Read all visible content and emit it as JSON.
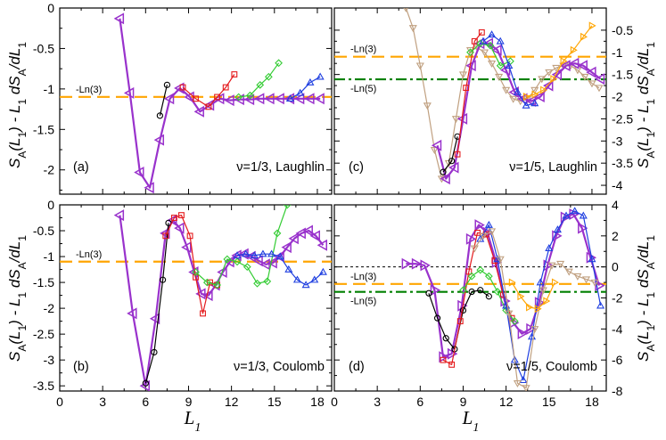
{
  "colors": {
    "purple": "#9932CC",
    "orange": "#FFA500",
    "green_ref": "#008000",
    "black": "#000000",
    "red": "#E41A1C",
    "green": "#33CC33",
    "blue": "#1F3FE0",
    "brown": "#C0A080"
  },
  "chart_data": [
    {
      "id": "a",
      "type": "line",
      "panel_label": "(a)",
      "annotation": "ν=1/3, Laughlin",
      "xlabel": "",
      "ylabel": "S_A(L_1) - L_1 dS_A/dL_1",
      "ylabel_side": "left",
      "xlim": [
        0,
        19
      ],
      "ylim": [
        -2.3,
        0
      ],
      "xticks": [
        0,
        3,
        6,
        9,
        12,
        15,
        18
      ],
      "xtick_labels": [
        "",
        "",
        "",
        "",
        "",
        "",
        ""
      ],
      "yticks": [
        0,
        -0.5,
        -1,
        -1.5,
        -2
      ],
      "ytick_labels": [
        "0",
        "-0.5",
        "-1",
        "-1.5",
        "-2"
      ],
      "ref_lines": [
        {
          "label": "-Ln(3)",
          "y": -1.0986,
          "color": "orange",
          "style": "dash"
        }
      ],
      "series": [
        {
          "name": "purple",
          "color": "purple",
          "marker": "tri-left",
          "width": 2.2,
          "x": [
            4.2,
            4.9,
            5.6,
            6.3,
            7.0,
            7.7,
            8.4,
            9.1,
            9.8,
            10.5,
            11.2,
            11.9,
            12.6,
            13.3,
            14.0,
            14.7,
            15.4,
            16.1,
            16.8,
            17.5,
            18.2
          ],
          "y": [
            -0.13,
            -1.05,
            -2.03,
            -2.22,
            -1.63,
            -1.12,
            -0.99,
            -1.1,
            -1.28,
            -1.2,
            -1.12,
            -1.14,
            -1.13,
            -1.13,
            -1.12,
            -1.12,
            -1.12,
            -1.12,
            -1.12,
            -1.12,
            -1.12
          ]
        },
        {
          "name": "black",
          "color": "black",
          "marker": "circle",
          "width": 1.2,
          "x": [
            7.0,
            7.5
          ],
          "y": [
            -1.33,
            -0.95
          ]
        },
        {
          "name": "red",
          "color": "red",
          "marker": "square",
          "width": 1.2,
          "x": [
            8.6,
            9.5,
            10.4,
            11.0,
            11.6,
            12.2
          ],
          "y": [
            -0.98,
            -1.12,
            -1.22,
            -1.1,
            -0.98,
            -0.82
          ]
        },
        {
          "name": "green",
          "color": "green",
          "marker": "diamond",
          "width": 1.2,
          "x": [
            12.5,
            13.3,
            14.0,
            14.6,
            15.3
          ],
          "y": [
            -1.1,
            -1.08,
            -0.95,
            -0.85,
            -0.68
          ]
        },
        {
          "name": "blue",
          "color": "blue",
          "marker": "tri-up",
          "width": 1.2,
          "x": [
            16.1,
            16.8,
            17.5,
            18.2
          ],
          "y": [
            -1.12,
            -1.05,
            -0.92,
            -0.85
          ]
        }
      ]
    },
    {
      "id": "b",
      "type": "line",
      "panel_label": "(b)",
      "annotation": "ν=1/3, Coulomb",
      "xlabel": "L_1",
      "ylabel": "S_A(L_1) - L_1 dS_A/dL_1",
      "ylabel_side": "left",
      "xlim": [
        0,
        19
      ],
      "ylim": [
        -3.6,
        0
      ],
      "xticks": [
        0,
        3,
        6,
        9,
        12,
        15,
        18
      ],
      "xtick_labels": [
        "0",
        "3",
        "6",
        "9",
        "12",
        "15",
        "18"
      ],
      "yticks": [
        0,
        -0.5,
        -1,
        -1.5,
        -2,
        -2.5,
        -3,
        -3.5
      ],
      "ytick_labels": [
        "0",
        "-0.5",
        "-1",
        "-1.5",
        "-2",
        "-2.5",
        "-3",
        "-3.5"
      ],
      "ref_lines": [
        {
          "label": "-Ln(3)",
          "y": -1.0986,
          "color": "orange",
          "style": "dash"
        }
      ],
      "series": [
        {
          "name": "purple",
          "color": "purple",
          "marker": "tri-left",
          "width": 2.2,
          "x": [
            4.2,
            5.1,
            6.0,
            6.7,
            7.4,
            7.9,
            8.4,
            8.9,
            9.4,
            9.9,
            10.4,
            10.9,
            11.4,
            11.9,
            12.4,
            12.9,
            13.4,
            13.9,
            14.4,
            14.9,
            15.4,
            15.9,
            16.4,
            16.9,
            17.4,
            17.9,
            18.4
          ],
          "y": [
            -0.2,
            -2.1,
            -3.5,
            -2.2,
            -0.55,
            -0.3,
            -0.45,
            -0.82,
            -1.3,
            -1.72,
            -1.75,
            -1.55,
            -1.3,
            -1.1,
            -0.98,
            -0.95,
            -1.0,
            -1.08,
            -1.15,
            -1.12,
            -1.0,
            -0.82,
            -0.65,
            -0.55,
            -0.5,
            -0.6,
            -0.78
          ]
        },
        {
          "name": "black",
          "color": "black",
          "marker": "circle",
          "width": 1.2,
          "x": [
            6.0,
            6.6,
            7.2,
            7.6
          ],
          "y": [
            -3.45,
            -2.85,
            -1.45,
            -0.35
          ]
        },
        {
          "name": "red",
          "color": "red",
          "marker": "square",
          "width": 1.2,
          "x": [
            7.4,
            8.0,
            8.5,
            9.1,
            9.5,
            10.0,
            10.5,
            11.0
          ],
          "y": [
            -0.6,
            -0.25,
            -0.2,
            -0.6,
            -1.4,
            -2.1,
            -1.5,
            -1.55
          ]
        },
        {
          "name": "green",
          "color": "green",
          "marker": "diamond",
          "width": 1.2,
          "x": [
            9.5,
            10.3,
            11.0,
            11.7,
            12.4,
            13.1,
            13.8,
            14.5,
            15.2,
            15.9
          ],
          "y": [
            -1.3,
            -1.5,
            -1.55,
            -1.05,
            -1.1,
            -1.2,
            -1.52,
            -1.48,
            -0.55,
            0.0
          ]
        },
        {
          "name": "blue",
          "color": "blue",
          "marker": "tri-up",
          "width": 1.2,
          "x": [
            12.4,
            13.0,
            13.6,
            14.2,
            14.8,
            15.4,
            16.0,
            16.6,
            17.2,
            17.8,
            18.4
          ],
          "y": [
            -0.98,
            -0.95,
            -0.98,
            -0.95,
            -0.95,
            -1.0,
            -1.25,
            -1.45,
            -1.55,
            -1.45,
            -1.3
          ]
        }
      ]
    },
    {
      "id": "c",
      "type": "line",
      "panel_label": "(c)",
      "annotation": "ν=1/5, Laughlin",
      "xlabel": "",
      "ylabel": "S_A(L_1) - L_1 dS_A/dL_1",
      "ylabel_side": "right",
      "xlim": [
        0,
        19
      ],
      "ylim": [
        -4.2,
        0
      ],
      "xticks": [
        0,
        3,
        6,
        9,
        12,
        15,
        18
      ],
      "xtick_labels": [
        "",
        "",
        "",
        "",
        "",
        "",
        ""
      ],
      "yticks": [
        -0.5,
        -1,
        -1.5,
        -2,
        -2.5,
        -3,
        -3.5,
        -4
      ],
      "ytick_labels": [
        "-0.5",
        "-1",
        "-1.5",
        "-2",
        "-2.5",
        "-3",
        "-3.5",
        "-4"
      ],
      "ref_lines": [
        {
          "label": "-Ln(3)",
          "y": -1.0986,
          "color": "orange",
          "style": "dash"
        },
        {
          "label": "-Ln(5)",
          "y": -1.6094,
          "color": "green_ref",
          "style": "dashdot"
        }
      ],
      "series": [
        {
          "name": "brown",
          "color": "brown",
          "marker": "tri-down",
          "width": 1.2,
          "x": [
            5.0,
            5.5,
            6.0,
            6.5,
            7.0,
            7.5,
            8.0,
            8.5,
            9.0,
            9.5,
            10.0,
            10.5,
            11.0,
            11.5,
            12.0,
            12.5,
            13.0,
            13.5,
            14.0,
            14.5,
            15.0,
            15.5,
            16.0,
            16.5,
            17.0,
            17.5,
            18.0,
            18.5
          ],
          "y": [
            0.0,
            -0.45,
            -1.3,
            -2.2,
            -3.2,
            -3.85,
            -3.5,
            -2.5,
            -1.5,
            -0.95,
            -0.9,
            -1.0,
            -1.25,
            -1.55,
            -1.85,
            -2.05,
            -2.1,
            -2.05,
            -1.85,
            -1.6,
            -1.45,
            -1.35,
            -1.3,
            -1.3,
            -1.4,
            -1.55,
            -1.7,
            -1.8
          ]
        },
        {
          "name": "purple",
          "color": "purple",
          "marker": "tri-left",
          "width": 2.2,
          "x": [
            7.2,
            7.8,
            8.4,
            9.0,
            9.6,
            10.2,
            10.8,
            11.4,
            12.0,
            12.6,
            13.2,
            13.8,
            14.4,
            15.0,
            15.6,
            16.2,
            16.8,
            17.4,
            18.0,
            18.6
          ],
          "y": [
            -3.1,
            -3.85,
            -3.6,
            -2.5,
            -1.3,
            -0.8,
            -0.8,
            -0.95,
            -1.4,
            -1.9,
            -2.05,
            -2.1,
            -2.0,
            -1.75,
            -1.5,
            -1.3,
            -1.25,
            -1.3,
            -1.45,
            -1.6
          ]
        },
        {
          "name": "black",
          "color": "black",
          "marker": "circle",
          "width": 1.2,
          "x": [
            7.6,
            8.2,
            8.6
          ],
          "y": [
            -3.7,
            -3.45,
            -2.9
          ]
        },
        {
          "name": "red",
          "color": "red",
          "marker": "square",
          "width": 1.2,
          "x": [
            8.6,
            9.2,
            9.8,
            10.3
          ],
          "y": [
            -3.3,
            -1.8,
            -0.75,
            -0.55
          ]
        },
        {
          "name": "green",
          "color": "green",
          "marker": "diamond",
          "width": 1.2,
          "x": [
            9.5,
            10.2,
            10.9,
            11.6,
            12.3
          ],
          "y": [
            -1.0,
            -0.8,
            -0.85,
            -1.3,
            -1.2
          ]
        },
        {
          "name": "blue",
          "color": "blue",
          "marker": "tri-up",
          "width": 1.2,
          "x": [
            10.4,
            11.0,
            11.6,
            12.2,
            12.8,
            13.4,
            14.0
          ],
          "y": [
            -0.75,
            -0.6,
            -0.75,
            -1.3,
            -1.9,
            -2.2,
            -2.15
          ]
        },
        {
          "name": "orange",
          "color": "orange",
          "marker": "tri-right",
          "width": 1.2,
          "x": [
            13.4,
            14.0,
            14.6,
            15.3,
            16.0,
            16.7,
            17.4,
            18.0
          ],
          "y": [
            -2.0,
            -1.95,
            -1.85,
            -1.6,
            -1.2,
            -0.95,
            -0.65,
            -0.4
          ]
        }
      ]
    },
    {
      "id": "d",
      "type": "line",
      "panel_label": "(d)",
      "annotation": "ν=1/5, Coulomb",
      "xlabel": "L_1",
      "ylabel": "S_A(L_1) - L_1 dS_A/dL_1",
      "ylabel_side": "right",
      "xlim": [
        0,
        19
      ],
      "ylim": [
        -8,
        4
      ],
      "xticks": [
        0,
        3,
        6,
        9,
        12,
        15,
        18
      ],
      "xtick_labels": [
        "0",
        "3",
        "6",
        "9",
        "12",
        "15",
        "18"
      ],
      "yticks": [
        4,
        2,
        0,
        -2,
        -4,
        -6,
        -8
      ],
      "ytick_labels": [
        "4",
        "2",
        "0",
        "-2",
        "-4",
        "-6",
        "-8"
      ],
      "ref_lines": [
        {
          "label": "",
          "y": 0,
          "color": "black",
          "style": "shortdash"
        },
        {
          "label": "-Ln(3)",
          "y": -1.0986,
          "color": "orange",
          "style": "dash"
        },
        {
          "label": "-Ln(5)",
          "y": -1.6094,
          "color": "green_ref",
          "style": "dashdot"
        }
      ],
      "series": [
        {
          "name": "purple",
          "color": "purple",
          "marker": "tri-right",
          "width": 2.2,
          "x": [
            5.0,
            5.7,
            6.3,
            7.0,
            7.6,
            8.2,
            8.9,
            9.5,
            10.1,
            10.7,
            11.3,
            11.9,
            12.5,
            13.1,
            13.7,
            14.3,
            14.9,
            15.5,
            16.1,
            16.7,
            17.3,
            17.9,
            18.5
          ],
          "y": [
            0.2,
            0.2,
            0.1,
            -1.5,
            -5.8,
            -5.6,
            -2.5,
            1.8,
            2.7,
            2.2,
            0.3,
            -2.2,
            -3.6,
            -4.3,
            -4.0,
            -2.3,
            0.1,
            2.0,
            3.2,
            3.4,
            2.5,
            0.6,
            -1.2
          ]
        },
        {
          "name": "black",
          "color": "black",
          "marker": "circle",
          "width": 1.2,
          "x": [
            6.6,
            7.2,
            7.8,
            8.4,
            9.0,
            9.6,
            10.2,
            10.8
          ],
          "y": [
            -1.7,
            -3.3,
            -4.6,
            -5.3,
            -2.8,
            -1.6,
            -1.5,
            -1.9
          ]
        },
        {
          "name": "red",
          "color": "red",
          "marker": "square",
          "width": 1.2,
          "x": [
            7.6,
            8.2,
            8.8,
            9.4,
            10.0,
            10.6,
            11.2,
            11.8,
            12.4
          ],
          "y": [
            -6.0,
            -6.3,
            -3.5,
            -0.3,
            2.2,
            2.1,
            0.4,
            -1.8,
            -3.3
          ]
        },
        {
          "name": "green",
          "color": "green",
          "marker": "diamond",
          "width": 1.2,
          "x": [
            9.0,
            9.6,
            10.2,
            10.8,
            11.4,
            12.0,
            12.6
          ],
          "y": [
            -1.5,
            -0.6,
            -0.2,
            -0.6,
            -1.6,
            -2.8,
            -3.5
          ]
        },
        {
          "name": "blue",
          "color": "blue",
          "marker": "tri-up",
          "width": 1.2,
          "x": [
            10.2,
            10.8,
            11.4,
            12.0,
            12.6,
            13.2,
            13.8,
            14.4,
            15.0,
            15.6,
            16.2,
            16.8,
            17.4,
            18.0,
            18.6
          ],
          "y": [
            1.8,
            2.7,
            0.5,
            -2.5,
            -6.0,
            -7.3,
            -4.5,
            -1.0,
            1.2,
            2.4,
            3.3,
            3.6,
            3.3,
            0.5,
            -2.5
          ]
        },
        {
          "name": "brown",
          "color": "brown",
          "marker": "tri-down",
          "width": 1.2,
          "x": [
            9.8,
            10.4,
            11.0,
            11.6,
            12.2,
            12.8,
            13.4,
            14.0,
            14.6,
            15.2,
            15.8,
            16.4,
            17.0,
            17.6,
            18.2
          ],
          "y": [
            1.2,
            2.0,
            2.3,
            0.5,
            -3.0,
            -7.5,
            -7.8,
            -4.0,
            -1.5,
            0.1,
            0.2,
            -0.3,
            -0.6,
            -0.8,
            -1.0
          ]
        },
        {
          "name": "orange",
          "color": "orange",
          "marker": "tri-right",
          "width": 1.2,
          "x": [
            12.4,
            13.0,
            13.6,
            14.2,
            14.8,
            15.4
          ],
          "y": [
            -1.0,
            -1.9,
            -2.6,
            -2.7,
            -2.2,
            -1.0
          ]
        }
      ]
    }
  ]
}
